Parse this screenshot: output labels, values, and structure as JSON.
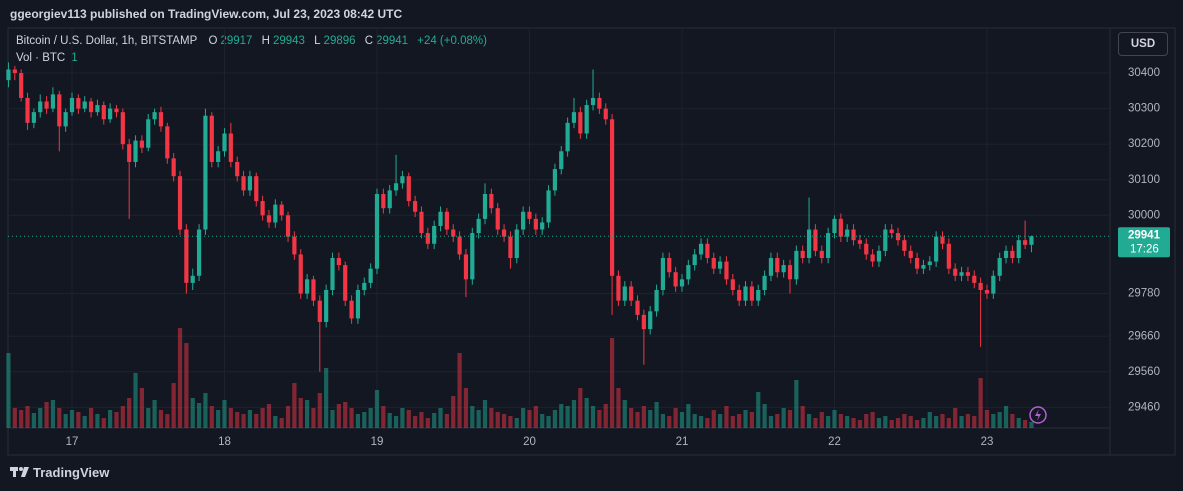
{
  "chart_data": {
    "type": "candlestick",
    "header": "ggeorgiev113 published on TradingView.com, Jul 23, 2023 08:42 UTC",
    "symbol": "Bitcoin / U.S. Dollar, 1h, BITSTAMP",
    "legend_values": [
      {
        "label": "O",
        "value": 29917
      },
      {
        "label": "H",
        "value": 29943
      },
      {
        "label": "L",
        "value": 29896
      },
      {
        "label": "C",
        "value": 29941
      }
    ],
    "change": "+24 (+0.08%)",
    "volume_title": "Vol · BTC",
    "volume_setting": 1,
    "currency": "USD",
    "last_price": 29941,
    "countdown": "17:26",
    "brand": "TradingView",
    "up_color": "#22ab94",
    "down_color": "#f23645",
    "grid": true,
    "ylim": [
      29402,
      30521
    ],
    "yticks": [
      30400,
      30300,
      30200,
      30100,
      30000,
      29780,
      29660,
      29560,
      29460
    ],
    "categories": [
      null,
      null,
      null,
      null,
      null,
      null,
      null,
      null,
      null,
      null,
      "17",
      null,
      null,
      null,
      null,
      null,
      null,
      null,
      null,
      null,
      null,
      null,
      null,
      null,
      null,
      null,
      null,
      null,
      null,
      null,
      null,
      null,
      null,
      null,
      "18",
      null,
      null,
      null,
      null,
      null,
      null,
      null,
      null,
      null,
      null,
      null,
      null,
      null,
      null,
      null,
      null,
      null,
      null,
      null,
      null,
      null,
      null,
      null,
      "19",
      null,
      null,
      null,
      null,
      null,
      null,
      null,
      null,
      null,
      null,
      null,
      null,
      null,
      null,
      null,
      null,
      null,
      null,
      null,
      null,
      null,
      null,
      null,
      "20",
      null,
      null,
      null,
      null,
      null,
      null,
      null,
      null,
      null,
      null,
      null,
      null,
      null,
      null,
      null,
      null,
      null,
      null,
      null,
      null,
      null,
      null,
      null,
      "21",
      null,
      null,
      null,
      null,
      null,
      null,
      null,
      null,
      null,
      null,
      null,
      null,
      null,
      null,
      null,
      null,
      null,
      null,
      null,
      null,
      null,
      null,
      null,
      "22",
      null,
      null,
      null,
      null,
      null,
      null,
      null,
      null,
      null,
      null,
      null,
      null,
      null,
      null,
      null,
      null,
      null,
      null,
      null,
      null,
      null,
      null,
      null,
      "23",
      null,
      null,
      null,
      null,
      null,
      null,
      null
    ],
    "candles": [
      [
        30380,
        30430,
        30360,
        30410
      ],
      [
        30410,
        30420,
        30380,
        30400
      ],
      [
        30400,
        30410,
        30320,
        30330
      ],
      [
        30330,
        30345,
        30240,
        30260
      ],
      [
        30260,
        30300,
        30245,
        30290
      ],
      [
        30290,
        30340,
        30275,
        30320
      ],
      [
        30320,
        30335,
        30285,
        30300
      ],
      [
        30300,
        30360,
        30290,
        30340
      ],
      [
        30340,
        30350,
        30180,
        30250
      ],
      [
        30250,
        30300,
        30235,
        30290
      ],
      [
        30290,
        30345,
        30280,
        30330
      ],
      [
        30330,
        30340,
        30285,
        30300
      ],
      [
        30300,
        30335,
        30290,
        30320
      ],
      [
        30320,
        30330,
        30275,
        30290
      ],
      [
        30290,
        30325,
        30280,
        30310
      ],
      [
        30310,
        30320,
        30255,
        30270
      ],
      [
        30270,
        30315,
        30260,
        30300
      ],
      [
        30300,
        30310,
        30275,
        30290
      ],
      [
        30290,
        30300,
        30185,
        30200
      ],
      [
        30200,
        30215,
        29990,
        30150
      ],
      [
        30150,
        30225,
        30135,
        30210
      ],
      [
        30210,
        30225,
        30175,
        30190
      ],
      [
        30190,
        30285,
        30180,
        30270
      ],
      [
        30270,
        30300,
        30255,
        30290
      ],
      [
        30290,
        30305,
        30235,
        30250
      ],
      [
        30250,
        30260,
        30145,
        30160
      ],
      [
        30160,
        30175,
        30095,
        30110
      ],
      [
        30110,
        30125,
        29945,
        29960
      ],
      [
        29960,
        29975,
        29780,
        29810
      ],
      [
        29810,
        29850,
        29790,
        29830
      ],
      [
        29830,
        29975,
        29815,
        29960
      ],
      [
        29960,
        30300,
        29945,
        30280
      ],
      [
        30280,
        30290,
        30135,
        30150
      ],
      [
        30150,
        30195,
        30135,
        30180
      ],
      [
        30180,
        30245,
        30165,
        30230
      ],
      [
        30230,
        30260,
        30135,
        30150
      ],
      [
        30150,
        30165,
        30095,
        30110
      ],
      [
        30110,
        30125,
        30055,
        30070
      ],
      [
        30070,
        30125,
        30055,
        30110
      ],
      [
        30110,
        30120,
        30025,
        30040
      ],
      [
        30040,
        30055,
        29985,
        30000
      ],
      [
        30000,
        30015,
        29965,
        29980
      ],
      [
        29980,
        30045,
        29965,
        30030
      ],
      [
        30030,
        30040,
        29985,
        30000
      ],
      [
        30000,
        30010,
        29925,
        29940
      ],
      [
        29940,
        29955,
        29875,
        29890
      ],
      [
        29890,
        29905,
        29765,
        29780
      ],
      [
        29780,
        29835,
        29765,
        29820
      ],
      [
        29820,
        29830,
        29745,
        29760
      ],
      [
        29760,
        29775,
        29560,
        29700
      ],
      [
        29700,
        29805,
        29685,
        29790
      ],
      [
        29790,
        29895,
        29775,
        29880
      ],
      [
        29880,
        29895,
        29845,
        29860
      ],
      [
        29860,
        29870,
        29745,
        29760
      ],
      [
        29760,
        29775,
        29695,
        29710
      ],
      [
        29710,
        29805,
        29695,
        29790
      ],
      [
        29790,
        29825,
        29775,
        29810
      ],
      [
        29810,
        29865,
        29795,
        29850
      ],
      [
        29850,
        30075,
        29835,
        30060
      ],
      [
        30060,
        30075,
        30005,
        30020
      ],
      [
        30020,
        30085,
        30005,
        30070
      ],
      [
        30070,
        30170,
        30055,
        30090
      ],
      [
        30090,
        30125,
        30075,
        30110
      ],
      [
        30110,
        30120,
        30025,
        30040
      ],
      [
        30040,
        30055,
        29995,
        30010
      ],
      [
        30010,
        30025,
        29935,
        29950
      ],
      [
        29950,
        29965,
        29905,
        29920
      ],
      [
        29920,
        29985,
        29905,
        29970
      ],
      [
        29970,
        30025,
        29955,
        30010
      ],
      [
        30010,
        30020,
        29945,
        29960
      ],
      [
        29960,
        29975,
        29925,
        29940
      ],
      [
        29940,
        29955,
        29875,
        29890
      ],
      [
        29890,
        29905,
        29770,
        29820
      ],
      [
        29820,
        29965,
        29805,
        29950
      ],
      [
        29950,
        30005,
        29935,
        29990
      ],
      [
        29990,
        30090,
        29975,
        30060
      ],
      [
        30060,
        30075,
        30005,
        30020
      ],
      [
        30020,
        30035,
        29945,
        29960
      ],
      [
        29960,
        29975,
        29925,
        29940
      ],
      [
        29940,
        29955,
        29850,
        29880
      ],
      [
        29880,
        29975,
        29865,
        29960
      ],
      [
        29960,
        30025,
        29945,
        30010
      ],
      [
        30010,
        30025,
        29975,
        29990
      ],
      [
        29990,
        30005,
        29945,
        29960
      ],
      [
        29960,
        29995,
        29945,
        29980
      ],
      [
        29980,
        30085,
        29965,
        30070
      ],
      [
        30070,
        30145,
        30055,
        30130
      ],
      [
        30130,
        30195,
        30115,
        30180
      ],
      [
        30180,
        30275,
        30165,
        30260
      ],
      [
        30260,
        30330,
        30245,
        30290
      ],
      [
        30290,
        30305,
        30215,
        30230
      ],
      [
        30230,
        30325,
        30215,
        30310
      ],
      [
        30310,
        30410,
        30295,
        30330
      ],
      [
        30330,
        30345,
        30285,
        30300
      ],
      [
        30300,
        30315,
        30255,
        30270
      ],
      [
        30270,
        30285,
        29720,
        29830
      ],
      [
        29830,
        29845,
        29745,
        29760
      ],
      [
        29760,
        29815,
        29745,
        29800
      ],
      [
        29800,
        29815,
        29745,
        29760
      ],
      [
        29760,
        29775,
        29705,
        29720
      ],
      [
        29720,
        29735,
        29580,
        29680
      ],
      [
        29680,
        29745,
        29665,
        29730
      ],
      [
        29730,
        29805,
        29715,
        29790
      ],
      [
        29790,
        29895,
        29775,
        29880
      ],
      [
        29880,
        29895,
        29825,
        29840
      ],
      [
        29840,
        29855,
        29785,
        29800
      ],
      [
        29800,
        29835,
        29785,
        29820
      ],
      [
        29820,
        29875,
        29805,
        29860
      ],
      [
        29860,
        29905,
        29845,
        29890
      ],
      [
        29890,
        29935,
        29875,
        29920
      ],
      [
        29920,
        29935,
        29865,
        29880
      ],
      [
        29880,
        29895,
        29835,
        29850
      ],
      [
        29850,
        29885,
        29835,
        29870
      ],
      [
        29870,
        29885,
        29805,
        29820
      ],
      [
        29820,
        29835,
        29775,
        29790
      ],
      [
        29790,
        29805,
        29745,
        29760
      ],
      [
        29760,
        29815,
        29745,
        29800
      ],
      [
        29800,
        29815,
        29745,
        29760
      ],
      [
        29760,
        29805,
        29745,
        29790
      ],
      [
        29790,
        29845,
        29775,
        29830
      ],
      [
        29830,
        29895,
        29815,
        29880
      ],
      [
        29880,
        29895,
        29825,
        29840
      ],
      [
        29840,
        29875,
        29825,
        29860
      ],
      [
        29860,
        29875,
        29780,
        29820
      ],
      [
        29820,
        29915,
        29805,
        29900
      ],
      [
        29900,
        29915,
        29865,
        29880
      ],
      [
        29880,
        30050,
        29865,
        29960
      ],
      [
        29960,
        29975,
        29885,
        29900
      ],
      [
        29900,
        29915,
        29865,
        29880
      ],
      [
        29880,
        29965,
        29865,
        29950
      ],
      [
        29950,
        30000,
        29935,
        29990
      ],
      [
        29990,
        30005,
        29925,
        29940
      ],
      [
        29940,
        29975,
        29925,
        29960
      ],
      [
        29960,
        29975,
        29915,
        29930
      ],
      [
        29930,
        29945,
        29905,
        29920
      ],
      [
        29920,
        29935,
        29875,
        29890
      ],
      [
        29890,
        29905,
        29855,
        29870
      ],
      [
        29870,
        29915,
        29855,
        29900
      ],
      [
        29900,
        29975,
        29885,
        29960
      ],
      [
        29960,
        29975,
        29935,
        29950
      ],
      [
        29950,
        29965,
        29915,
        29930
      ],
      [
        29930,
        29945,
        29885,
        29900
      ],
      [
        29900,
        29915,
        29865,
        29880
      ],
      [
        29880,
        29895,
        29835,
        29850
      ],
      [
        29850,
        29875,
        29835,
        29860
      ],
      [
        29860,
        29885,
        29845,
        29870
      ],
      [
        29870,
        29955,
        29855,
        29940
      ],
      [
        29940,
        29955,
        29905,
        29920
      ],
      [
        29920,
        29935,
        29835,
        29850
      ],
      [
        29850,
        29865,
        29815,
        29830
      ],
      [
        29830,
        29855,
        29815,
        29840
      ],
      [
        29840,
        29855,
        29815,
        29830
      ],
      [
        29830,
        29845,
        29795,
        29810
      ],
      [
        29810,
        29825,
        29630,
        29790
      ],
      [
        29790,
        29805,
        29765,
        29780
      ],
      [
        29780,
        29845,
        29765,
        29830
      ],
      [
        29830,
        29895,
        29815,
        29880
      ],
      [
        29880,
        29915,
        29865,
        29900
      ],
      [
        29900,
        29915,
        29865,
        29880
      ],
      [
        29880,
        29945,
        29865,
        29930
      ],
      [
        29930,
        29985,
        29905,
        29917
      ],
      [
        29917,
        29943,
        29896,
        29941
      ]
    ],
    "volumes": [
      75,
      20,
      18,
      22,
      15,
      20,
      26,
      28,
      20,
      14,
      18,
      16,
      12,
      20,
      14,
      10,
      18,
      16,
      22,
      30,
      55,
      40,
      20,
      28,
      18,
      14,
      45,
      100,
      85,
      30,
      25,
      35,
      22,
      18,
      28,
      20,
      16,
      14,
      18,
      14,
      20,
      24,
      12,
      10,
      22,
      45,
      30,
      28,
      20,
      35,
      60,
      18,
      24,
      26,
      20,
      14,
      16,
      20,
      38,
      22,
      15,
      12,
      20,
      18,
      12,
      16,
      10,
      15,
      20,
      14,
      32,
      75,
      40,
      22,
      18,
      28,
      20,
      16,
      14,
      12,
      10,
      20,
      18,
      22,
      14,
      12,
      18,
      24,
      22,
      28,
      40,
      30,
      22,
      18,
      24,
      90,
      40,
      28,
      20,
      16,
      22,
      18,
      26,
      14,
      12,
      20,
      16,
      24,
      14,
      12,
      10,
      18,
      14,
      22,
      12,
      14,
      18,
      16,
      36,
      24,
      12,
      14,
      20,
      18,
      48,
      22,
      14,
      10,
      16,
      12,
      18,
      14,
      12,
      10,
      8,
      14,
      16,
      10,
      12,
      8,
      10,
      14,
      12,
      8,
      10,
      16,
      12,
      14,
      10,
      20,
      12,
      14,
      12,
      50,
      18,
      14,
      16,
      22,
      14,
      10,
      8,
      6
    ]
  }
}
